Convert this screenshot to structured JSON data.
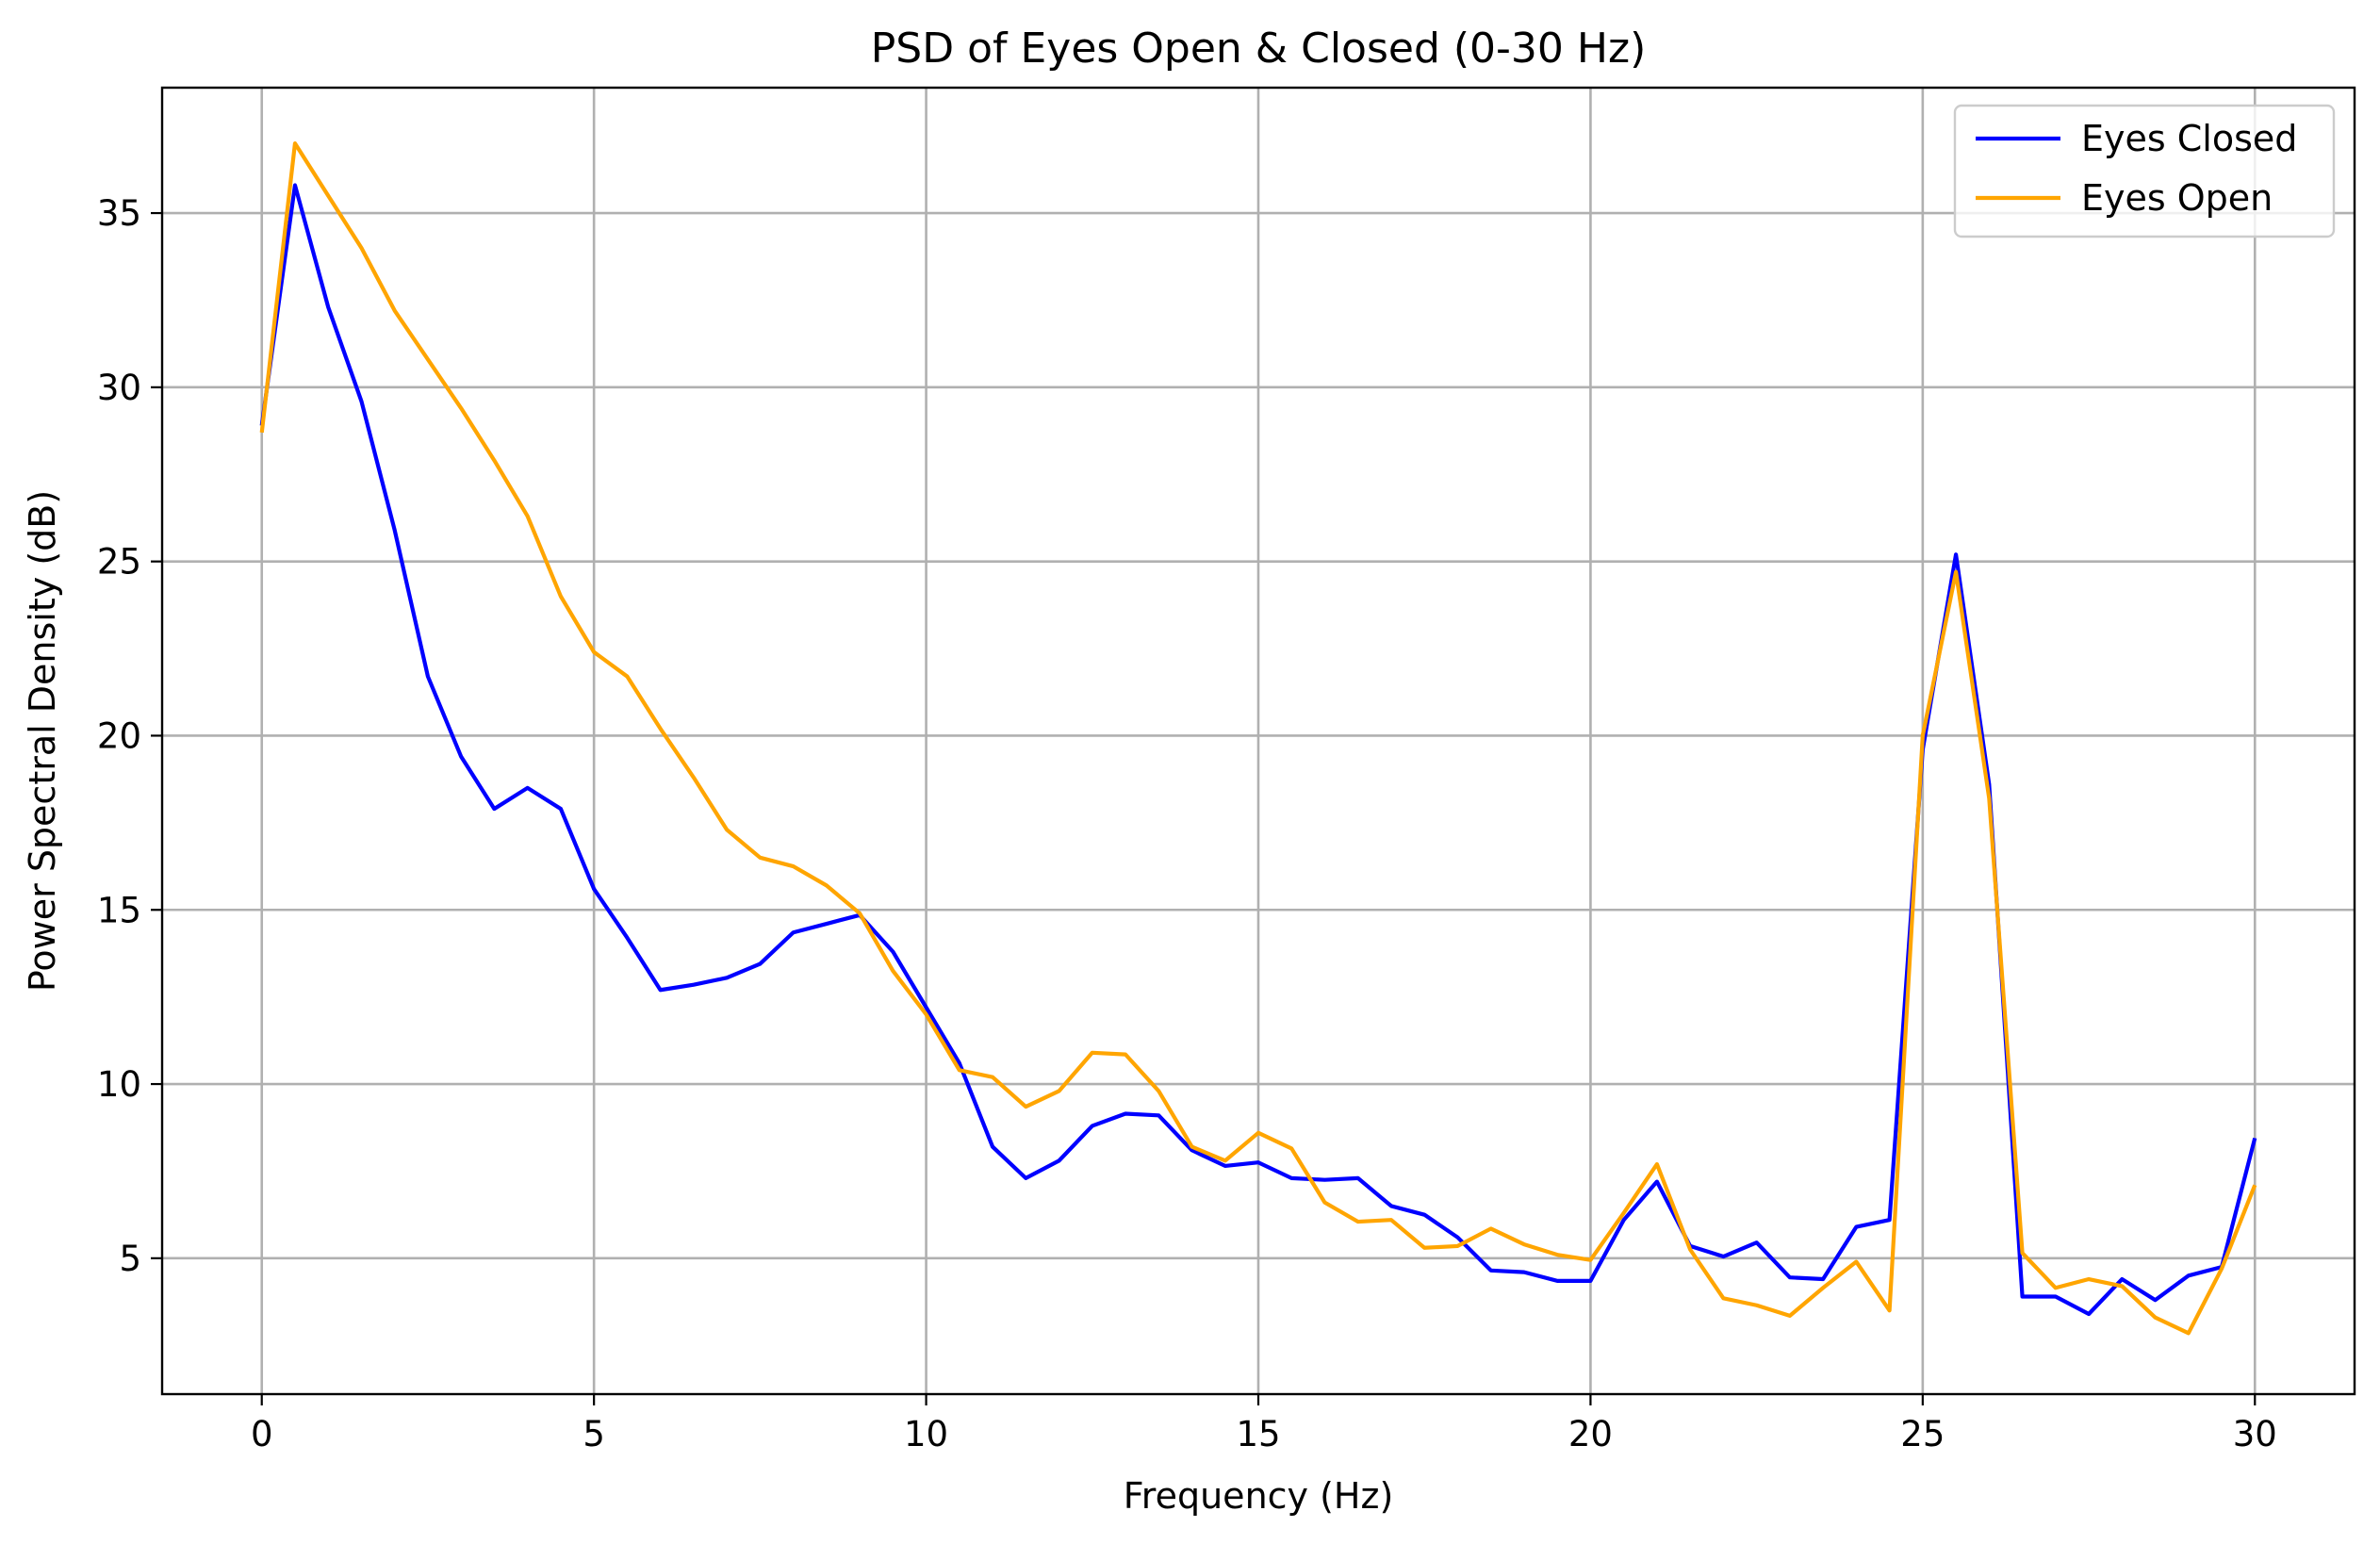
{
  "chart_data": {
    "type": "line",
    "title": "PSD of Eyes Open & Closed (0-30 Hz)",
    "xlabel": "Frequency (Hz)",
    "ylabel": "Power Spectral Density (dB)",
    "xlim": [
      -1.5,
      31.5
    ],
    "ylim": [
      1.1,
      38.6
    ],
    "xticks": [
      0,
      5,
      10,
      15,
      20,
      25,
      30
    ],
    "yticks": [
      5,
      10,
      15,
      20,
      25,
      30,
      35
    ],
    "xtick_labels": [
      "0",
      "5",
      "10",
      "15",
      "20",
      "25",
      "30"
    ],
    "ytick_labels": [
      "5",
      "10",
      "15",
      "20",
      "25",
      "30",
      "35"
    ],
    "grid": true,
    "legend_position": "top-right",
    "x": [
      0,
      0.5,
      1,
      1.5,
      2,
      2.5,
      3,
      3.5,
      4,
      4.5,
      5,
      5.5,
      6,
      6.5,
      7,
      7.5,
      8,
      8.5,
      9,
      9.5,
      10,
      10.5,
      11,
      11.5,
      12,
      12.5,
      13,
      13.5,
      14,
      14.5,
      15,
      15.5,
      16,
      16.5,
      17,
      17.5,
      18,
      18.5,
      19,
      19.5,
      20,
      20.5,
      21,
      21.5,
      22,
      22.5,
      23,
      23.5,
      24,
      24.5,
      25,
      25.5,
      26,
      26.5,
      27,
      27.5,
      28,
      28.5,
      29,
      29.5,
      30
    ],
    "series": [
      {
        "name": "Eyes Closed",
        "color": "#0000ff",
        "values": [
          28.9,
          35.8,
          32.3,
          29.6,
          25.9,
          21.7,
          19.4,
          17.9,
          18.5,
          17.9,
          15.6,
          14.2,
          12.7,
          12.85,
          13.05,
          13.45,
          14.35,
          14.6,
          14.85,
          13.8,
          12.2,
          10.6,
          8.2,
          7.3,
          7.8,
          8.8,
          9.15,
          9.1,
          8.1,
          7.65,
          7.75,
          7.3,
          7.25,
          7.3,
          6.5,
          6.25,
          5.6,
          4.65,
          4.6,
          4.35,
          4.35,
          6.1,
          7.2,
          5.35,
          5.05,
          5.45,
          4.45,
          4.4,
          5.9,
          6.1,
          19.6,
          25.2,
          18.6,
          3.9,
          3.9,
          3.4,
          4.4,
          3.8,
          4.5,
          4.75,
          8.45
        ]
      },
      {
        "name": "Eyes Open",
        "color": "#ffa500",
        "values": [
          28.7,
          37.0,
          35.5,
          34.0,
          32.2,
          30.8,
          29.4,
          27.9,
          26.3,
          24.0,
          22.4,
          21.7,
          20.2,
          18.8,
          17.3,
          16.5,
          16.25,
          15.7,
          14.9,
          13.25,
          12.0,
          10.4,
          10.2,
          9.35,
          9.8,
          10.9,
          10.85,
          9.8,
          8.2,
          7.8,
          8.6,
          8.15,
          6.6,
          6.05,
          6.1,
          5.3,
          5.35,
          5.85,
          5.4,
          5.1,
          4.95,
          6.3,
          7.7,
          5.25,
          3.85,
          3.65,
          3.35,
          4.15,
          4.9,
          3.5,
          20.0,
          24.7,
          18.2,
          5.15,
          4.15,
          4.4,
          4.2,
          3.3,
          2.85,
          4.7,
          7.1
        ]
      }
    ]
  }
}
